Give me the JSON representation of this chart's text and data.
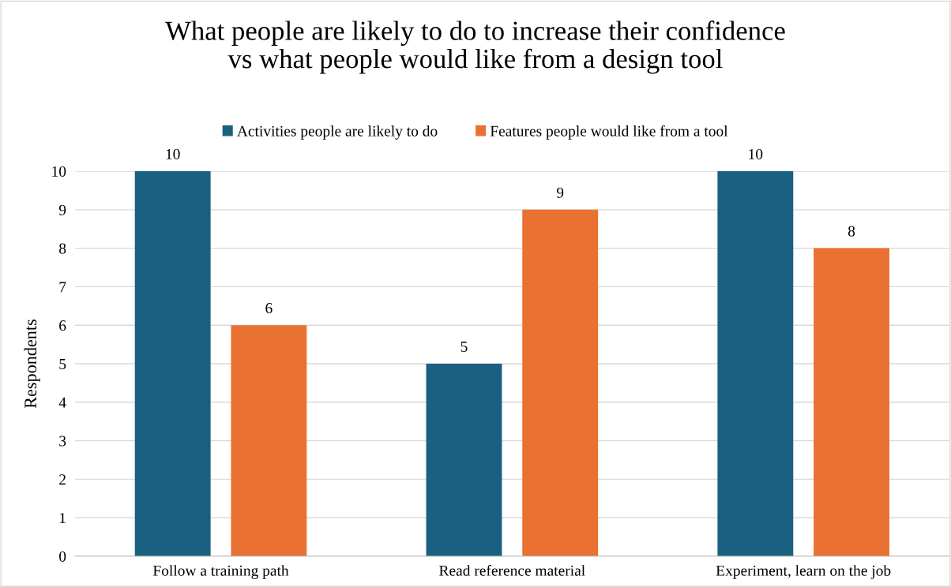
{
  "chart_data": {
    "type": "bar",
    "title": "What people are likely to do to increase their confidence\nvs what people would like from a design tool",
    "ylabel": "Respondents",
    "categories": [
      "Follow a training path",
      "Read reference material",
      "Experiment, learn on the job"
    ],
    "series": [
      {
        "name": "Activities people are likely to do",
        "color": "#1a6080",
        "values": [
          10,
          5,
          10
        ]
      },
      {
        "name": "Features people would like from a tool",
        "color": "#e97132",
        "values": [
          6,
          9,
          8
        ]
      }
    ],
    "ylim": [
      0,
      10
    ],
    "yticks": [
      0,
      1,
      2,
      3,
      4,
      5,
      6,
      7,
      8,
      9,
      10
    ],
    "grid": "y",
    "legend": "top",
    "data_labels": true
  }
}
